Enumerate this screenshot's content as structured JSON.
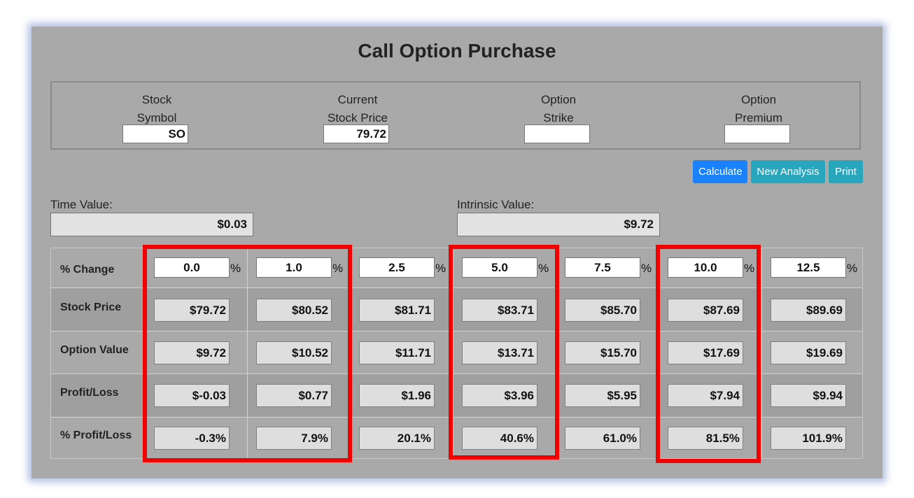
{
  "title": "Call Option Purchase",
  "inputs": [
    {
      "label1": "Stock",
      "label2": "Symbol",
      "value": "SO"
    },
    {
      "label1": "Current",
      "label2": "Stock Price",
      "value": "79.72"
    },
    {
      "label1": "Option",
      "label2": "Strike",
      "value": ""
    },
    {
      "label1": "Option",
      "label2": "Premium",
      "value": ""
    }
  ],
  "buttons": {
    "calculate": "Calculate",
    "new_analysis": "New Analysis",
    "print": "Print"
  },
  "time_value": {
    "label": "Time Value:",
    "value": "$0.03"
  },
  "intrinsic_value": {
    "label": "Intrinsic Value:",
    "value": "$9.72"
  },
  "table": {
    "pct_label": "% Change",
    "pct_sign": "%",
    "pct_changes": [
      "0.0",
      "1.0",
      "2.5",
      "5.0",
      "7.5",
      "10.0",
      "12.5"
    ],
    "rows": [
      {
        "label": "Stock Price",
        "values": [
          "$79.72",
          "$80.52",
          "$81.71",
          "$83.71",
          "$85.70",
          "$87.69",
          "$89.69"
        ]
      },
      {
        "label": "Option Value",
        "values": [
          "$9.72",
          "$10.52",
          "$11.71",
          "$13.71",
          "$15.70",
          "$17.69",
          "$19.69"
        ]
      },
      {
        "label": "Profit/Loss",
        "values": [
          "$-0.03",
          "$0.77",
          "$1.96",
          "$3.96",
          "$5.95",
          "$7.94",
          "$9.94"
        ]
      },
      {
        "label": "% Profit/Loss",
        "values": [
          "-0.3%",
          "7.9%",
          "20.1%",
          "40.6%",
          "61.0%",
          "81.5%",
          "101.9%"
        ]
      }
    ]
  },
  "highlight_color": "#f20000"
}
